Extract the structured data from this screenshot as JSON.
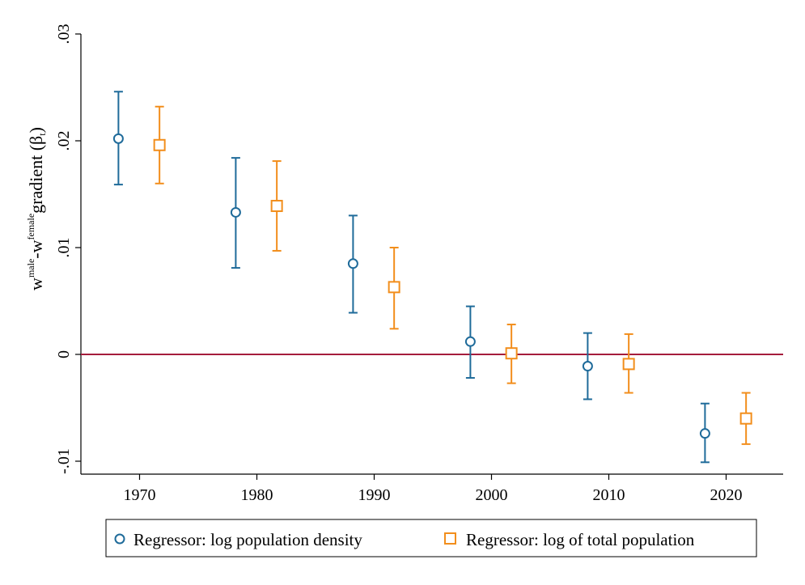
{
  "chart_data": {
    "type": "scatter",
    "title": "",
    "ylabel_parts": {
      "a": "w",
      "a_sup": "male",
      "b": "-w",
      "b_sup": "female",
      "c": "gradient (β",
      "c_sub": "t",
      "d": ")"
    },
    "xlabel": "",
    "xlim": [
      1965,
      2025
    ],
    "ylim": [
      -0.0105,
      0.0305
    ],
    "x_ticks": [
      1970,
      1980,
      1990,
      2000,
      2010,
      2020
    ],
    "x_tick_labels": [
      "1970",
      "1980",
      "1990",
      "2000",
      "2010",
      "2020"
    ],
    "y_ticks": [
      -0.01,
      0,
      0.01,
      0.02,
      0.03
    ],
    "y_tick_labels": [
      "-.01",
      "0",
      ".01",
      ".02",
      ".03"
    ],
    "reference_line": {
      "y": 0,
      "color": "#a51c3c"
    },
    "grid": false,
    "legend_position": "bottom",
    "series": [
      {
        "name": "Regressor: log population density",
        "marker": "circle",
        "color": "#1f6b9a",
        "x": [
          1968.2,
          1978.2,
          1988.2,
          1998.2,
          2008.2,
          2018.2
        ],
        "y": [
          0.0202,
          0.0133,
          0.0085,
          0.0012,
          -0.0011,
          -0.0074
        ],
        "ci_low": [
          0.0159,
          0.0081,
          0.0039,
          -0.0022,
          -0.0042,
          -0.0101
        ],
        "ci_high": [
          0.0246,
          0.0184,
          0.013,
          0.0045,
          0.002,
          -0.0046
        ]
      },
      {
        "name": "Regressor: log of total population",
        "marker": "square",
        "color": "#f28e1c",
        "x": [
          1971.7,
          1981.7,
          1991.7,
          2001.7,
          2011.7,
          2021.7
        ],
        "y": [
          0.0196,
          0.0139,
          0.0063,
          0.0001,
          -0.0009,
          -0.006
        ],
        "ci_low": [
          0.016,
          0.0097,
          0.0024,
          -0.0027,
          -0.0036,
          -0.0084
        ],
        "ci_high": [
          0.0232,
          0.0181,
          0.01,
          0.0028,
          0.0019,
          -0.0036
        ]
      }
    ]
  }
}
